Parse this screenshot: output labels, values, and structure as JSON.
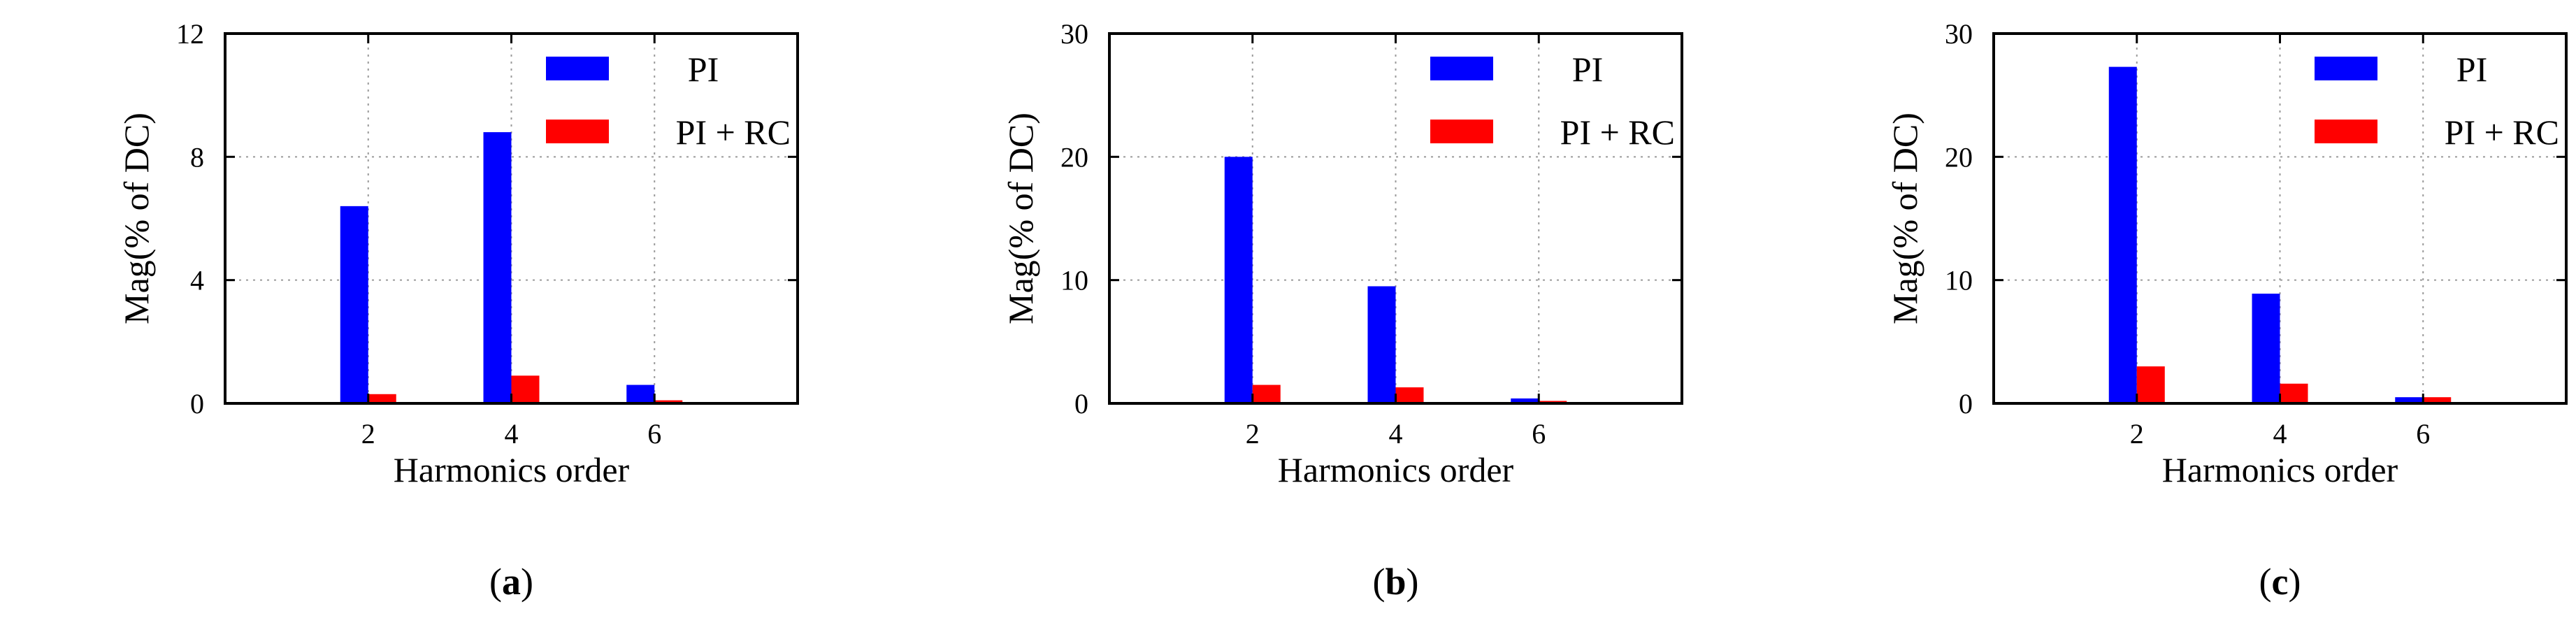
{
  "chart_data": [
    {
      "panel_label": "a",
      "type": "bar",
      "categories": [
        "2",
        "4",
        "6"
      ],
      "x": [
        2,
        4,
        6
      ],
      "xlim": [
        0,
        8
      ],
      "ylim": [
        0,
        12
      ],
      "yticks": [
        "0",
        "4",
        "8",
        "12"
      ],
      "xlabel": "Harmonics order",
      "ylabel": "Mag(% of DC)",
      "grid": true,
      "legend_position": "top-right",
      "series": [
        {
          "name": "PI",
          "color": "#0000ff",
          "values": [
            6.4,
            8.8,
            0.6
          ]
        },
        {
          "name": "PI + RC",
          "color": "#ff0000",
          "values": [
            0.3,
            0.9,
            0.1
          ]
        }
      ]
    },
    {
      "panel_label": "b",
      "type": "bar",
      "categories": [
        "2",
        "4",
        "6"
      ],
      "x": [
        2,
        4,
        6
      ],
      "xlim": [
        0,
        8
      ],
      "ylim": [
        0,
        30
      ],
      "yticks": [
        "0",
        "10",
        "20",
        "30"
      ],
      "xlabel": "Harmonics order",
      "ylabel": "Mag(% of DC)",
      "grid": true,
      "legend_position": "top-right",
      "series": [
        {
          "name": "PI",
          "color": "#0000ff",
          "values": [
            20.0,
            9.5,
            0.4
          ]
        },
        {
          "name": "PI + RC",
          "color": "#ff0000",
          "values": [
            1.5,
            1.3,
            0.2
          ]
        }
      ]
    },
    {
      "panel_label": "c",
      "type": "bar",
      "categories": [
        "2",
        "4",
        "6"
      ],
      "x": [
        2,
        4,
        6
      ],
      "xlim": [
        0,
        8
      ],
      "ylim": [
        0,
        30
      ],
      "yticks": [
        "0",
        "10",
        "20",
        "30"
      ],
      "xlabel": "Harmonics order",
      "ylabel": "Mag(% of DC)",
      "grid": true,
      "legend_position": "top-right",
      "series": [
        {
          "name": "PI",
          "color": "#0000ff",
          "values": [
            27.3,
            8.9,
            0.5
          ]
        },
        {
          "name": "PI + RC",
          "color": "#ff0000",
          "values": [
            3.0,
            1.6,
            0.5
          ]
        }
      ]
    }
  ]
}
